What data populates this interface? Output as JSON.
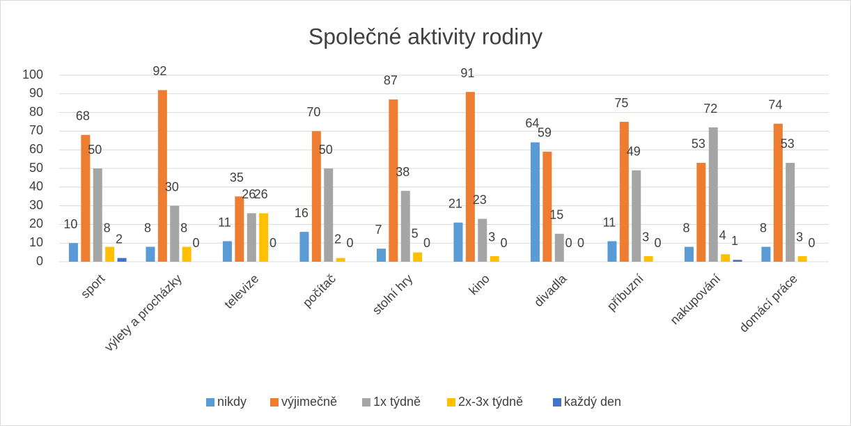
{
  "chart_data": {
    "type": "bar",
    "title": "Společné aktivity rodiny",
    "categories": [
      "sport",
      "výlety a procházky",
      "televize",
      "počítač",
      "stolní hry",
      "kino",
      "divadla",
      "příbuzní",
      "nakupování",
      "domácí práce"
    ],
    "series": [
      {
        "name": "nikdy",
        "color": "#5b9bd5",
        "values": [
          10,
          8,
          11,
          16,
          7,
          21,
          64,
          11,
          8,
          8
        ]
      },
      {
        "name": "výjimečně",
        "color": "#ed7d31",
        "values": [
          68,
          92,
          35,
          70,
          87,
          91,
          59,
          75,
          53,
          74
        ]
      },
      {
        "name": "1x týdně",
        "color": "#a5a5a5",
        "values": [
          50,
          30,
          26,
          50,
          38,
          23,
          15,
          49,
          72,
          53
        ]
      },
      {
        "name": "2x-3x týdně",
        "color": "#ffc000",
        "values": [
          8,
          8,
          26,
          2,
          5,
          3,
          0,
          3,
          4,
          3
        ]
      },
      {
        "name": "každý den",
        "color": "#4472c4",
        "values": [
          2,
          0,
          0,
          0,
          0,
          0,
          0,
          0,
          1,
          0
        ]
      }
    ],
    "ylim": [
      0,
      100
    ],
    "yticks": [
      0,
      10,
      20,
      30,
      40,
      50,
      60,
      70,
      80,
      90,
      100
    ],
    "grid": true,
    "legend": "bottom"
  }
}
